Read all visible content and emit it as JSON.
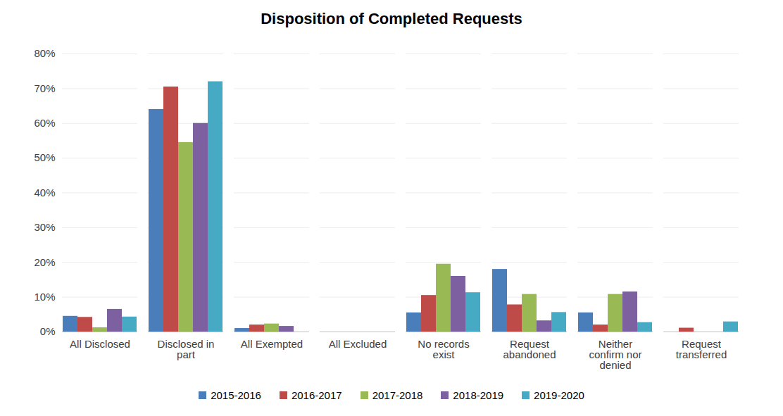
{
  "chart_data": {
    "type": "bar",
    "title": "Disposition of Completed Requests",
    "categories": [
      "All Disclosed",
      "Disclosed in part",
      "All Exempted",
      "All Excluded",
      "No records exist",
      "Request abandoned",
      "Neither confirm nor denied",
      "Request transferred"
    ],
    "series": [
      {
        "name": "2015-2016",
        "color": "#4a7ebb",
        "values": [
          4.5,
          64,
          1,
          0,
          5.5,
          18,
          5.5,
          0
        ]
      },
      {
        "name": "2016-2017",
        "color": "#be4b48",
        "values": [
          4.2,
          70.5,
          2,
          0,
          10.5,
          7.8,
          2,
          1.1
        ]
      },
      {
        "name": "2017-2018",
        "color": "#98b954",
        "values": [
          1.2,
          54.5,
          2.3,
          0,
          19.5,
          10.8,
          10.8,
          0
        ]
      },
      {
        "name": "2018-2019",
        "color": "#7d60a0",
        "values": [
          6.5,
          60,
          1.6,
          0,
          16,
          3.2,
          11.5,
          0
        ]
      },
      {
        "name": "2019-2020",
        "color": "#46aac5",
        "values": [
          4.3,
          72,
          0,
          0,
          11.3,
          5.6,
          2.7,
          2.9
        ]
      }
    ],
    "ylim": [
      0,
      80
    ],
    "yticks": [
      {
        "value": 0,
        "label": "0%"
      },
      {
        "value": 10,
        "label": "10%"
      },
      {
        "value": 20,
        "label": "20%"
      },
      {
        "value": 30,
        "label": "30%"
      },
      {
        "value": 40,
        "label": "40%"
      },
      {
        "value": 50,
        "label": "50%"
      },
      {
        "value": 60,
        "label": "60%"
      },
      {
        "value": 70,
        "label": "70%"
      },
      {
        "value": 80,
        "label": "80%"
      }
    ],
    "grid": true,
    "legend": "bottom"
  }
}
